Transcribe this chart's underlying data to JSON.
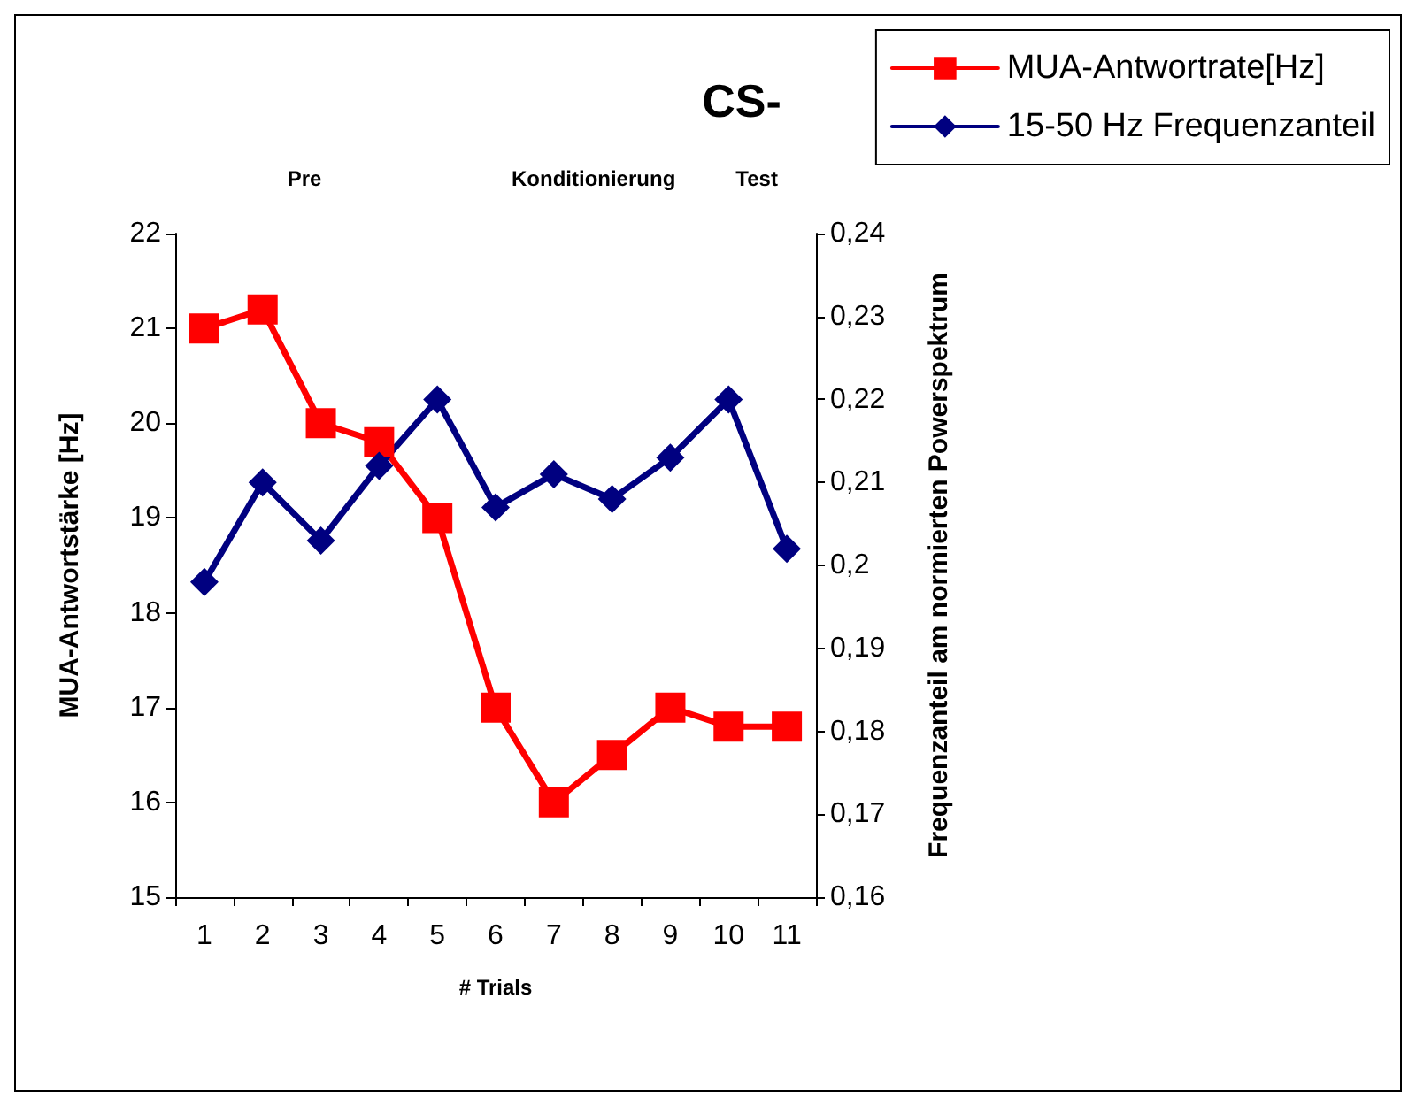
{
  "chart_data": {
    "type": "line",
    "title": "CS-",
    "xlabel": "# Trials",
    "ylabel": "MUA-Antwortstärke [Hz]",
    "y2label": "Frequenzanteil am normierten Powerspektrum",
    "annotations": [
      "Pre",
      "Konditionierung",
      "Test"
    ],
    "categories": [
      "1",
      "2",
      "3",
      "4",
      "5",
      "6",
      "7",
      "8",
      "9",
      "10",
      "11"
    ],
    "series": [
      {
        "name": "MUA-Antwortrate[Hz]",
        "color": "#ff0000",
        "marker": "square",
        "values": [
          21,
          21.2,
          20,
          19.8,
          19,
          17,
          16,
          16.5,
          17,
          16.8,
          16.8
        ]
      },
      {
        "name": "15-50 Hz Frequenzanteil",
        "color": "#000080",
        "marker": "diamond",
        "axis": "y2",
        "values": [
          0.198,
          0.21,
          0.203,
          0.212,
          0.22,
          0.207,
          0.211,
          0.208,
          0.213,
          0.22,
          0.202
        ]
      }
    ],
    "ylim": [
      15,
      22
    ],
    "yticks": [
      15,
      16,
      17,
      18,
      19,
      20,
      21,
      22
    ],
    "y2lim": [
      0.16,
      0.24
    ],
    "y2ticks": [
      {
        "value": 0.16,
        "label": "0,16"
      },
      {
        "value": 0.17,
        "label": "0,17"
      },
      {
        "value": 0.18,
        "label": "0,18"
      },
      {
        "value": 0.19,
        "label": "0,19"
      },
      {
        "value": 0.2,
        "label": "0,2"
      },
      {
        "value": 0.21,
        "label": "0,21"
      },
      {
        "value": 0.22,
        "label": "0,22"
      },
      {
        "value": 0.23,
        "label": "0,23"
      },
      {
        "value": 0.24,
        "label": "0,24"
      }
    ],
    "grid": false,
    "legend": "top right",
    "line_style": "solid"
  }
}
